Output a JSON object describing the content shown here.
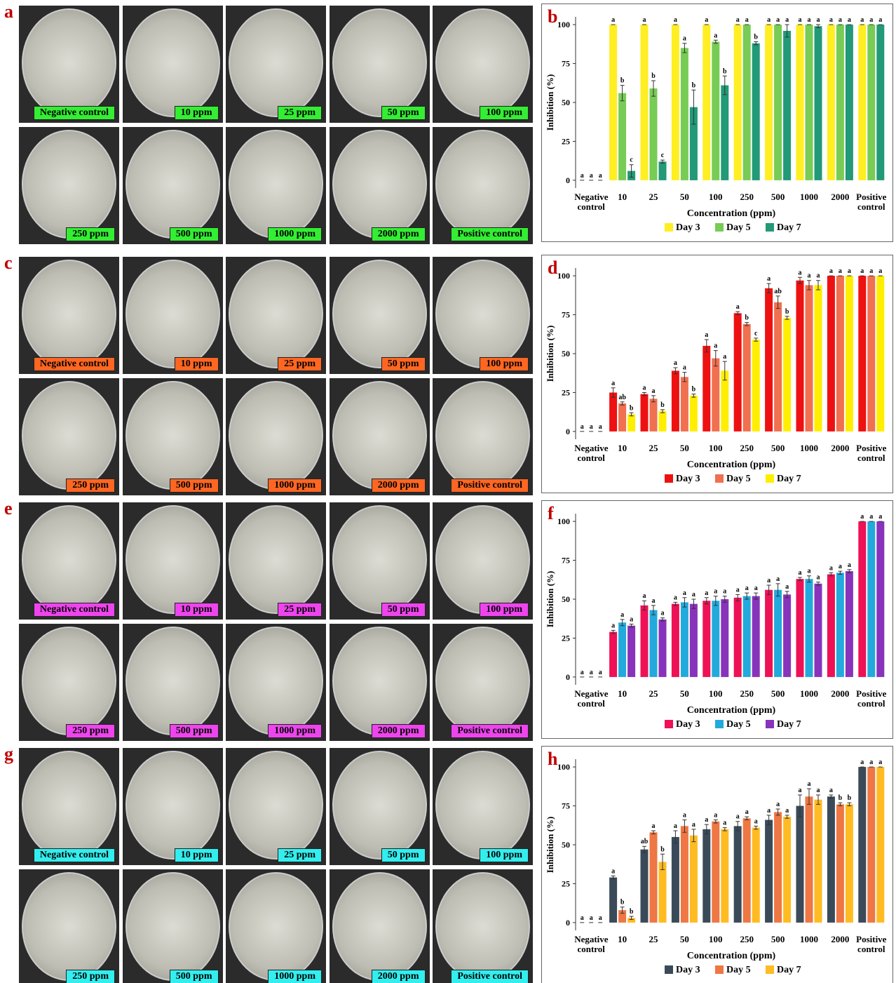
{
  "photo_panels": [
    {
      "panel_label": "a",
      "label_color": "#33ee33",
      "plates": [
        "Negative control",
        "10 ppm",
        "25 ppm",
        "50 ppm",
        "100 ppm",
        "250 ppm",
        "500 ppm",
        "1000 ppm",
        "2000 ppm",
        "Positive control"
      ]
    },
    {
      "panel_label": "c",
      "label_color": "#ff6622",
      "plates": [
        "Negative control",
        "10 ppm",
        "25 ppm",
        "50 ppm",
        "100 ppm",
        "250 ppm",
        "500 ppm",
        "1000 ppm",
        "2000 ppm",
        "Positive control"
      ]
    },
    {
      "panel_label": "e",
      "label_color": "#ee44ee",
      "plates": [
        "Negative control",
        "10 ppm",
        "25 ppm",
        "50 ppm",
        "100 ppm",
        "250 ppm",
        "500 ppm",
        "1000 ppm",
        "2000 ppm",
        "Positive control"
      ]
    },
    {
      "panel_label": "g",
      "label_color": "#33eeee",
      "plates": [
        "Negative control",
        "10 ppm",
        "25 ppm",
        "50 ppm",
        "100 ppm",
        "250 ppm",
        "500 ppm",
        "1000 ppm",
        "2000 ppm",
        "Positive control"
      ]
    }
  ],
  "chart_data": [
    {
      "type": "bar",
      "panel_label": "b",
      "x_label": "Concentration (ppm)",
      "y_label": "Inhibition (%)",
      "ylim": [
        -5,
        105
      ],
      "yticks": [
        0,
        25,
        50,
        75,
        100
      ],
      "categories": [
        "Negative control",
        "10",
        "25",
        "50",
        "100",
        "250",
        "500",
        "1000",
        "2000",
        "Positive control"
      ],
      "series": [
        {
          "name": "Day 3",
          "color": "#ffee22",
          "values": [
            0,
            100,
            100,
            100,
            100,
            100,
            100,
            100,
            100,
            100
          ],
          "errors": [
            0,
            0,
            0,
            0,
            0,
            0,
            0,
            0,
            0,
            0
          ],
          "letters": [
            "a",
            "a",
            "a",
            "a",
            "a",
            "a",
            "a",
            "a",
            "a",
            "a"
          ]
        },
        {
          "name": "Day 5",
          "color": "#77cc55",
          "values": [
            0,
            56,
            59,
            85,
            89,
            100,
            100,
            100,
            100,
            100
          ],
          "errors": [
            0,
            5,
            5,
            3,
            1,
            0,
            0,
            0,
            0,
            0
          ],
          "letters": [
            "a",
            "b",
            "b",
            "a",
            "a",
            "a",
            "a",
            "a",
            "a",
            "a"
          ]
        },
        {
          "name": "Day 7",
          "color": "#229977",
          "values": [
            0,
            6,
            12,
            47,
            61,
            88,
            96,
            99,
            100,
            100
          ],
          "errors": [
            0,
            4,
            1,
            11,
            6,
            1,
            4,
            1,
            0,
            0
          ],
          "letters": [
            "a",
            "c",
            "c",
            "b",
            "b",
            "b",
            "a",
            "a",
            "a",
            "a"
          ]
        }
      ]
    },
    {
      "type": "bar",
      "panel_label": "d",
      "x_label": "Concentration (ppm)",
      "y_label": "Inhibition (%)",
      "ylim": [
        -5,
        105
      ],
      "yticks": [
        0,
        25,
        50,
        75,
        100
      ],
      "categories": [
        "Negative control",
        "10",
        "25",
        "50",
        "100",
        "250",
        "500",
        "1000",
        "2000",
        "Positive control"
      ],
      "series": [
        {
          "name": "Day 3",
          "color": "#ee1111",
          "values": [
            0,
            25,
            24,
            39,
            55,
            76,
            92,
            97,
            100,
            100
          ],
          "errors": [
            0,
            3,
            1,
            2,
            4,
            1,
            3,
            2,
            0,
            0
          ],
          "letters": [
            "a",
            "a",
            "a",
            "a",
            "a",
            "a",
            "a",
            "a",
            "a",
            "a"
          ]
        },
        {
          "name": "Day 5",
          "color": "#f07050",
          "values": [
            0,
            18,
            21,
            35,
            47,
            69,
            83,
            94,
            100,
            100
          ],
          "errors": [
            0,
            1,
            2,
            3,
            5,
            1,
            4,
            3,
            0,
            0
          ],
          "letters": [
            "a",
            "ab",
            "a",
            "a",
            "a",
            "b",
            "ab",
            "a",
            "a",
            "a"
          ]
        },
        {
          "name": "Day 7",
          "color": "#ffee00",
          "values": [
            0,
            11,
            13,
            23,
            39,
            59,
            73,
            94,
            100,
            100
          ],
          "errors": [
            0,
            1,
            1,
            1,
            6,
            1,
            1,
            3,
            0,
            0
          ],
          "letters": [
            "a",
            "b",
            "b",
            "b",
            "a",
            "c",
            "b",
            "a",
            "a",
            "a"
          ]
        }
      ]
    },
    {
      "type": "bar",
      "panel_label": "f",
      "x_label": "Concentration (ppm)",
      "y_label": "Inhibition (%)",
      "ylim": [
        -5,
        105
      ],
      "yticks": [
        0,
        25,
        50,
        75,
        100
      ],
      "categories": [
        "Negative control",
        "10",
        "25",
        "50",
        "100",
        "250",
        "500",
        "1000",
        "2000",
        "Positive control"
      ],
      "series": [
        {
          "name": "Day 3",
          "color": "#ee1155",
          "values": [
            0,
            29,
            46,
            47,
            49,
            51,
            56,
            63,
            66,
            100
          ],
          "errors": [
            0,
            1,
            3,
            1,
            2,
            2,
            3,
            1,
            1,
            0
          ],
          "letters": [
            "a",
            "a",
            "a",
            "a",
            "a",
            "a",
            "a",
            "a",
            "a",
            "a"
          ]
        },
        {
          "name": "Day 5",
          "color": "#22aadd",
          "values": [
            0,
            35,
            43,
            48,
            49,
            52,
            56,
            63,
            67,
            100
          ],
          "errors": [
            0,
            2,
            3,
            3,
            3,
            2,
            4,
            2,
            1,
            0
          ],
          "letters": [
            "a",
            "a",
            "a",
            "a",
            "a",
            "a",
            "a",
            "a",
            "a",
            "a"
          ]
        },
        {
          "name": "Day 7",
          "color": "#8833bb",
          "values": [
            0,
            33,
            37,
            47,
            50,
            52,
            53,
            60,
            68,
            100
          ],
          "errors": [
            0,
            1,
            1,
            3,
            2,
            2,
            2,
            1,
            1,
            0
          ],
          "letters": [
            "a",
            "a",
            "a",
            "a",
            "a",
            "a",
            "a",
            "a",
            "a",
            "a"
          ]
        }
      ]
    },
    {
      "type": "bar",
      "panel_label": "h",
      "x_label": "Concentration (ppm)",
      "y_label": "Inhibition (%)",
      "ylim": [
        -5,
        105
      ],
      "yticks": [
        0,
        25,
        50,
        75,
        100
      ],
      "categories": [
        "Negative control",
        "10",
        "25",
        "50",
        "100",
        "250",
        "500",
        "1000",
        "2000",
        "Positive control"
      ],
      "series": [
        {
          "name": "Day 3",
          "color": "#3a4a58",
          "values": [
            0,
            29,
            47,
            55,
            60,
            62,
            66,
            75,
            81,
            100
          ],
          "errors": [
            0,
            1,
            2,
            4,
            3,
            3,
            3,
            7,
            1,
            0
          ],
          "letters": [
            "a",
            "a",
            "ab",
            "a",
            "a",
            "a",
            "a",
            "a",
            "a",
            "a"
          ]
        },
        {
          "name": "Day 5",
          "color": "#ee7744",
          "values": [
            0,
            8,
            58,
            62,
            65,
            67,
            71,
            81,
            76,
            100
          ],
          "errors": [
            0,
            2,
            1,
            4,
            1,
            1,
            2,
            5,
            1,
            0
          ],
          "letters": [
            "a",
            "b",
            "a",
            "a",
            "a",
            "a",
            "a",
            "a",
            "b",
            "a"
          ]
        },
        {
          "name": "Day 7",
          "color": "#ffbb22",
          "values": [
            0,
            3,
            39,
            56,
            60,
            61,
            68,
            79,
            76,
            100
          ],
          "errors": [
            0,
            1,
            5,
            4,
            1,
            1,
            1,
            3,
            1,
            0
          ],
          "letters": [
            "a",
            "b",
            "b",
            "a",
            "a",
            "a",
            "a",
            "a",
            "b",
            "a"
          ]
        }
      ]
    }
  ]
}
